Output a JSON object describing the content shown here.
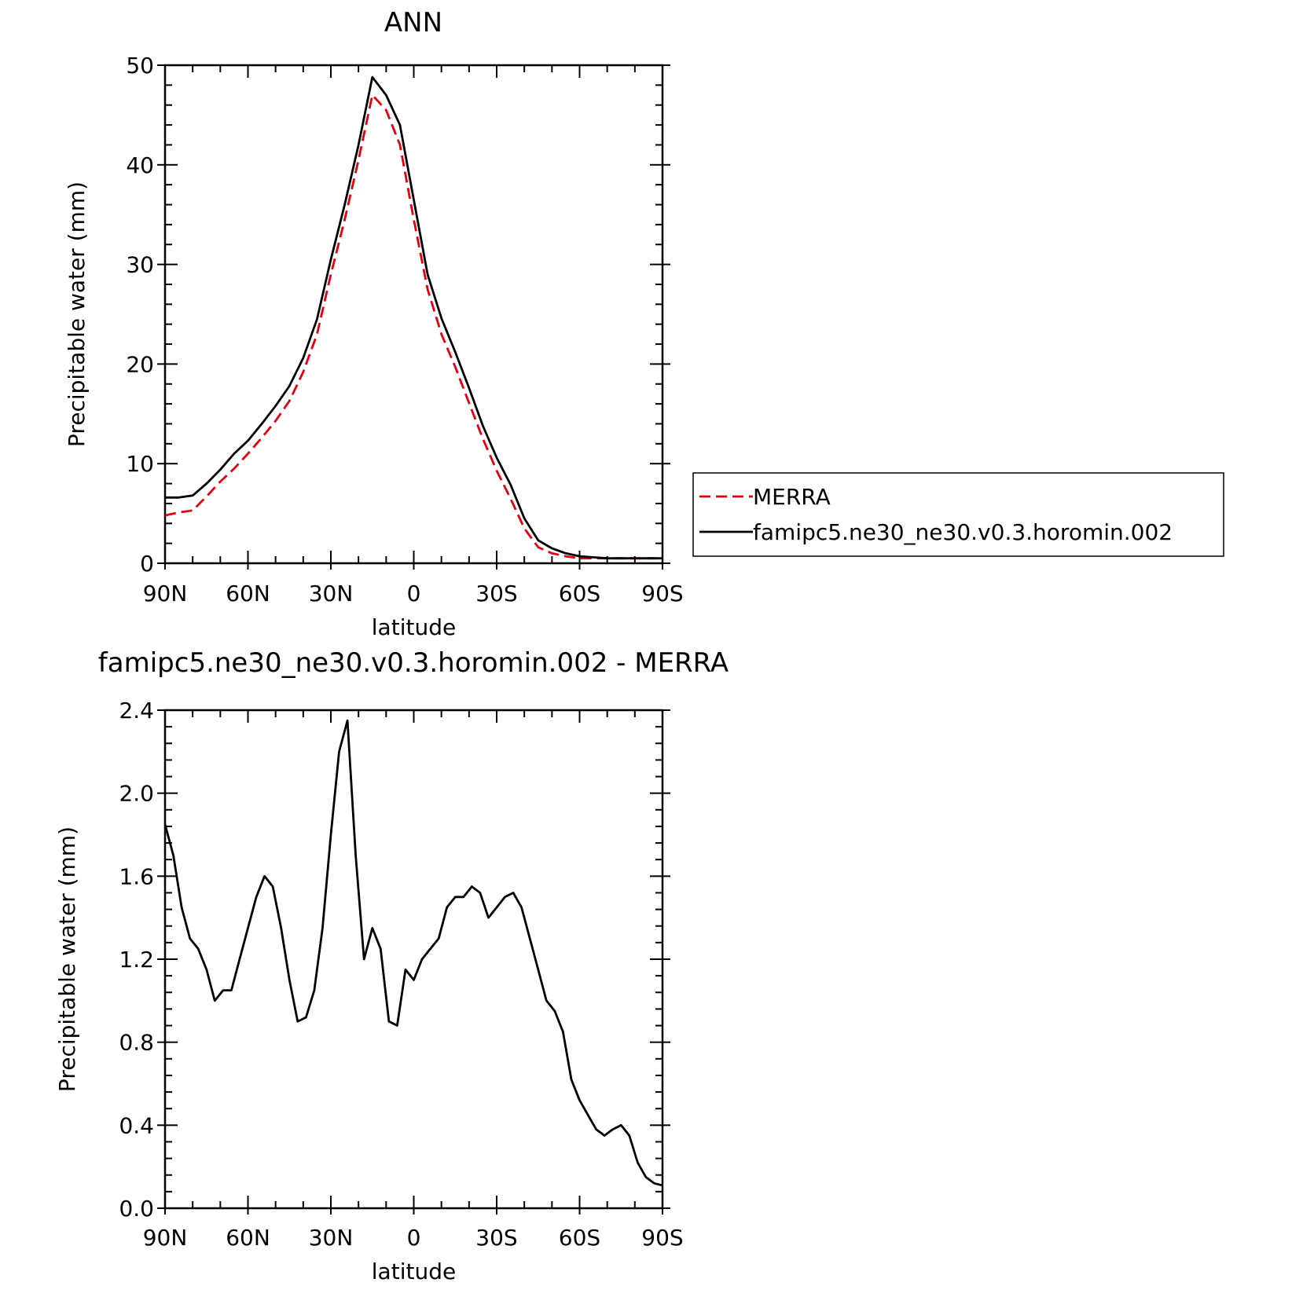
{
  "chart_data": [
    {
      "type": "line",
      "title": "ANN",
      "xlabel": "latitude",
      "ylabel": "Precipitable water (mm)",
      "xlim": [
        90,
        -90
      ],
      "ylim": [
        0,
        50
      ],
      "x_ticks": [
        90,
        60,
        30,
        0,
        -30,
        -60,
        -90
      ],
      "x_tick_labels": [
        "90N",
        "60N",
        "30N",
        "0",
        "30S",
        "60S",
        "90S"
      ],
      "y_ticks": [
        0,
        10,
        20,
        30,
        40,
        50
      ],
      "y_tick_labels": [
        "0",
        "10",
        "20",
        "30",
        "40",
        "50"
      ],
      "grid": false,
      "legend_position": "right",
      "series": [
        {
          "name": "MERRA",
          "color": "#e3000f",
          "dash": "dashed",
          "x": [
            90,
            85,
            80,
            75,
            70,
            65,
            60,
            55,
            50,
            45,
            40,
            35,
            30,
            25,
            20,
            15,
            10,
            5,
            0,
            -5,
            -10,
            -15,
            -20,
            -25,
            -30,
            -35,
            -40,
            -45,
            -50,
            -55,
            -60,
            -65,
            -70,
            -75,
            -80,
            -85,
            -90
          ],
          "y": [
            4.8,
            5.1,
            5.3,
            6.7,
            8.2,
            9.5,
            11.0,
            12.6,
            14.3,
            16.3,
            19.2,
            23.0,
            29.0,
            34.5,
            40.5,
            47.0,
            45.5,
            42.0,
            34.5,
            27.5,
            23.0,
            19.7,
            16.1,
            12.5,
            9.3,
            6.5,
            3.5,
            1.6,
            1.0,
            0.7,
            0.5,
            0.5,
            0.5,
            0.5,
            0.5,
            0.5,
            0.5
          ]
        },
        {
          "name": "famipc5.ne30_ne30.v0.3.horomin.002",
          "color": "#000000",
          "dash": "solid",
          "x": [
            90,
            85,
            80,
            75,
            70,
            65,
            60,
            55,
            50,
            45,
            40,
            35,
            30,
            25,
            20,
            15,
            10,
            5,
            0,
            -5,
            -10,
            -15,
            -20,
            -25,
            -30,
            -35,
            -40,
            -45,
            -50,
            -55,
            -60,
            -65,
            -70,
            -75,
            -80,
            -85,
            -90
          ],
          "y": [
            6.6,
            6.6,
            6.8,
            8.0,
            9.4,
            11.0,
            12.3,
            14.0,
            15.8,
            17.8,
            20.6,
            24.5,
            30.5,
            36.0,
            42.0,
            48.8,
            47.0,
            44.0,
            36.5,
            29.0,
            24.6,
            21.2,
            17.6,
            13.8,
            10.6,
            7.9,
            4.5,
            2.3,
            1.5,
            1.0,
            0.7,
            0.6,
            0.5,
            0.5,
            0.5,
            0.5,
            0.5
          ]
        }
      ]
    },
    {
      "type": "line",
      "title": "famipc5.ne30_ne30.v0.3.horomin.002 - MERRA",
      "xlabel": "latitude",
      "ylabel": "Precipitable water (mm)",
      "xlim": [
        90,
        -90
      ],
      "ylim": [
        0,
        2.4
      ],
      "x_ticks": [
        90,
        60,
        30,
        0,
        -30,
        -60,
        -90
      ],
      "x_tick_labels": [
        "90N",
        "60N",
        "30N",
        "0",
        "30S",
        "60S",
        "90S"
      ],
      "y_ticks": [
        0,
        0.4,
        0.8,
        1.2,
        1.6,
        2.0,
        2.4
      ],
      "y_tick_labels": [
        "0.0",
        "0.4",
        "0.8",
        "1.2",
        "1.6",
        "2.0",
        "2.4"
      ],
      "grid": false,
      "series": [
        {
          "color": "#000000",
          "dash": "solid",
          "x": [
            90,
            87,
            84,
            81,
            78,
            75,
            72,
            69,
            66,
            63,
            60,
            57,
            54,
            51,
            48,
            45,
            42,
            39,
            36,
            33,
            30,
            27,
            24,
            21,
            18,
            15,
            12,
            9,
            6,
            3,
            0,
            -3,
            -6,
            -9,
            -12,
            -15,
            -18,
            -21,
            -24,
            -27,
            -30,
            -33,
            -36,
            -39,
            -42,
            -45,
            -48,
            -51,
            -54,
            -57,
            -60,
            -63,
            -66,
            -69,
            -72,
            -75,
            -78,
            -81,
            -84,
            -87,
            -90
          ],
          "y": [
            1.85,
            1.7,
            1.45,
            1.3,
            1.25,
            1.15,
            1.0,
            1.05,
            1.05,
            1.2,
            1.35,
            1.5,
            1.6,
            1.55,
            1.35,
            1.1,
            0.9,
            0.92,
            1.05,
            1.35,
            1.8,
            2.2,
            2.35,
            1.7,
            1.2,
            1.35,
            1.25,
            0.9,
            0.88,
            1.15,
            1.1,
            1.2,
            1.25,
            1.3,
            1.45,
            1.5,
            1.5,
            1.55,
            1.52,
            1.4,
            1.45,
            1.5,
            1.52,
            1.45,
            1.3,
            1.15,
            1.0,
            0.95,
            0.85,
            0.62,
            0.52,
            0.45,
            0.38,
            0.35,
            0.38,
            0.4,
            0.35,
            0.22,
            0.15,
            0.12,
            0.11
          ]
        }
      ]
    }
  ]
}
